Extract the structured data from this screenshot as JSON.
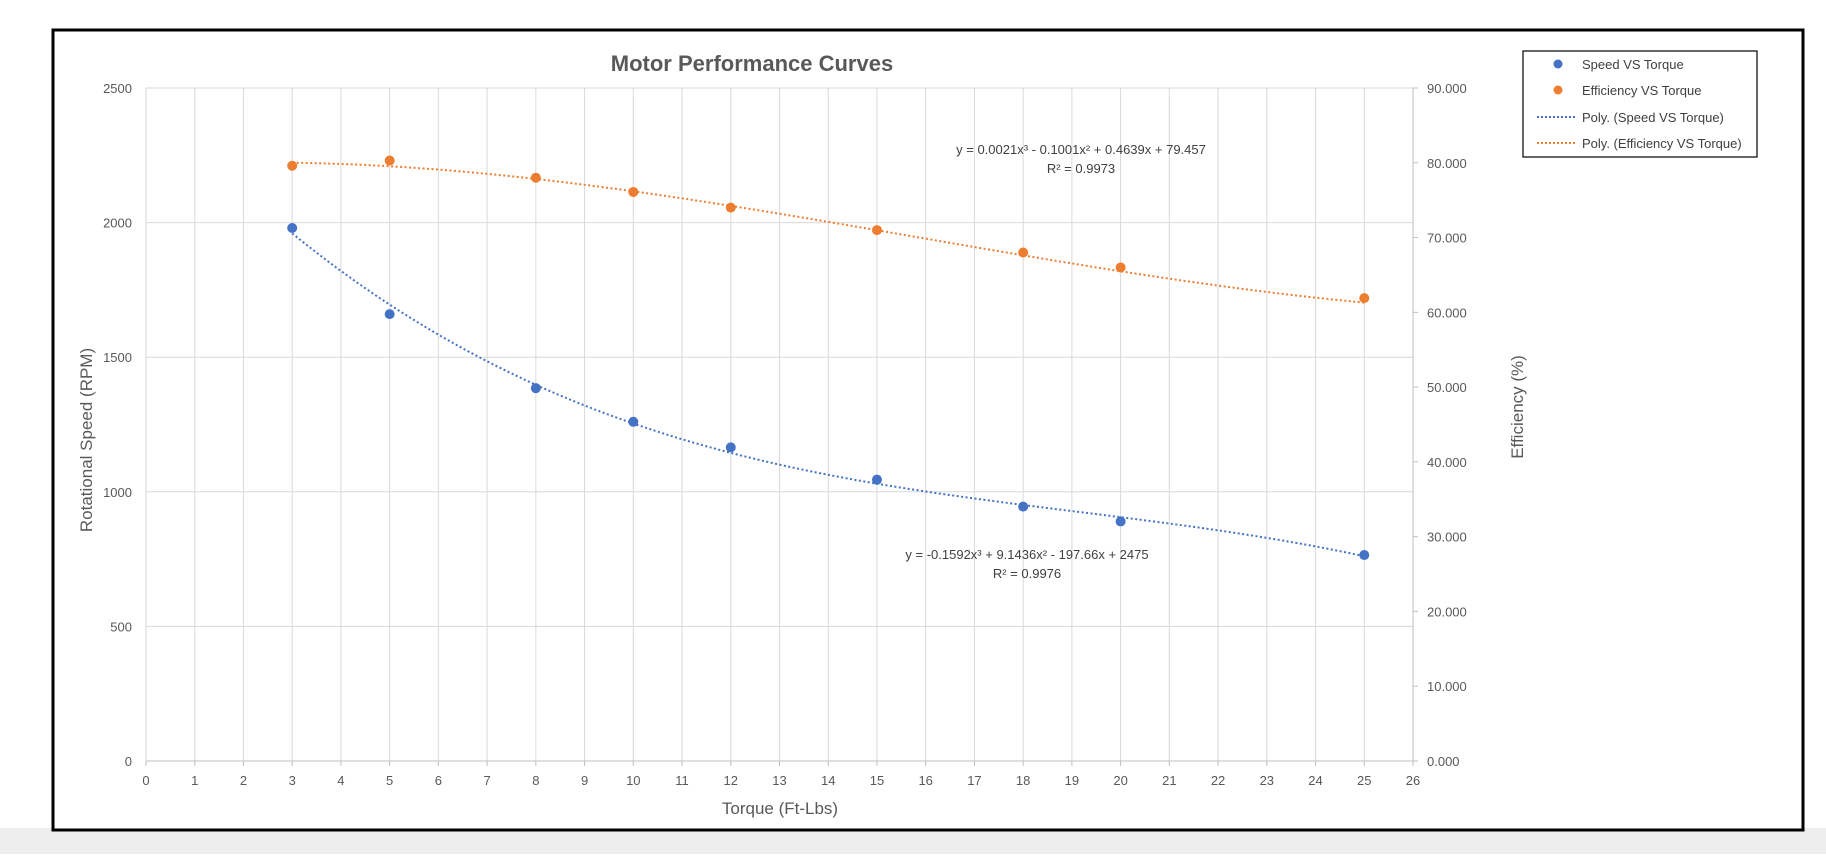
{
  "chart_data": {
    "type": "scatter",
    "title": "Motor Performance Curves",
    "xlabel": "Torque (Ft-Lbs)",
    "ylabel": "Rotational Speed (RPM)",
    "y2label": "Efficiency (%)",
    "xlim": [
      0,
      26
    ],
    "ylim": [
      0,
      2500
    ],
    "y2lim": [
      0,
      90
    ],
    "x_ticks": [
      "0",
      "1",
      "2",
      "3",
      "4",
      "5",
      "6",
      "7",
      "8",
      "9",
      "10",
      "11",
      "12",
      "13",
      "14",
      "15",
      "16",
      "17",
      "18",
      "19",
      "20",
      "21",
      "22",
      "23",
      "24",
      "25",
      "26"
    ],
    "y_ticks": [
      "0",
      "500",
      "1000",
      "1500",
      "2000",
      "2500"
    ],
    "y2_ticks": [
      "0.000",
      "10.000",
      "20.000",
      "30.000",
      "40.000",
      "50.000",
      "60.000",
      "70.000",
      "80.000",
      "90.000"
    ],
    "grid": true,
    "legend_position": "top-right",
    "series": [
      {
        "name": "Speed VS Torque",
        "axis": "left",
        "color": "#4472C4",
        "x": [
          3,
          5,
          8,
          10,
          12,
          15,
          18,
          20,
          25
        ],
        "y": [
          1980,
          1660,
          1385,
          1260,
          1165,
          1045,
          945,
          890,
          765
        ]
      },
      {
        "name": "Efficiency VS Torque",
        "axis": "right",
        "color": "#ED7D31",
        "x": [
          3,
          5,
          8,
          10,
          12,
          15,
          18,
          20,
          25
        ],
        "y": [
          79.6,
          80.3,
          78.0,
          76.1,
          74.0,
          71.0,
          68.0,
          66.0,
          61.9
        ]
      }
    ],
    "trendlines": [
      {
        "name": "Poly. (Speed VS Torque)",
        "of": "Speed VS Torque",
        "color": "#4472C4",
        "coefficients": [
          -0.1592,
          9.1436,
          -197.66,
          2475
        ],
        "equation": "y = -0.1592x³ + 9.1436x² - 197.66x + 2475",
        "r2": "R² = 0.9976"
      },
      {
        "name": "Poly. (Efficiency VS Torque)",
        "of": "Efficiency VS Torque",
        "color": "#ED7D31",
        "coefficients": [
          0.0021,
          -0.1001,
          0.4639,
          79.457
        ],
        "equation": "y = 0.0021x³ - 0.1001x² + 0.4639x + 79.457",
        "r2": "R² = 0.9973"
      }
    ]
  }
}
